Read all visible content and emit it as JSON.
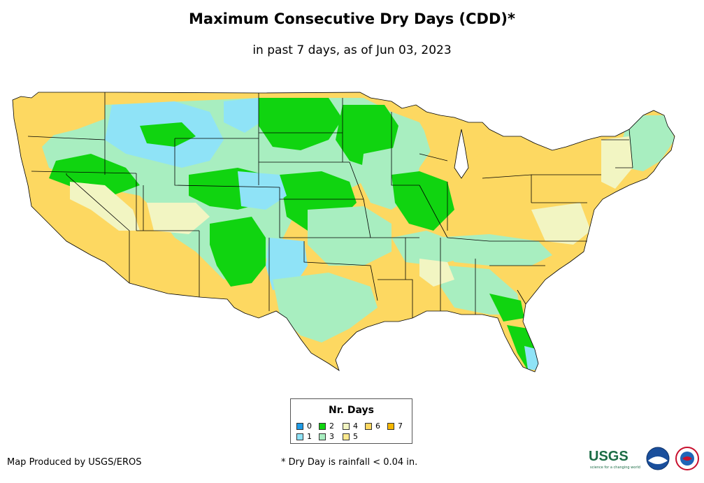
{
  "title": "Maximum Consecutive Dry Days (CDD)*",
  "subtitle": "in past 7 days, as of Jun 03, 2023",
  "legend": {
    "title": "Nr. Days",
    "items": [
      {
        "label": "0",
        "color": "#1e9be6"
      },
      {
        "label": "1",
        "color": "#8fe3f7"
      },
      {
        "label": "2",
        "color": "#10d410"
      },
      {
        "label": "3",
        "color": "#a8eec0"
      },
      {
        "label": "4",
        "color": "#f2f5c2"
      },
      {
        "label": "5",
        "color": "#fbe98f"
      },
      {
        "label": "6",
        "color": "#fdd861"
      },
      {
        "label": "7",
        "color": "#f5b700"
      }
    ]
  },
  "credit": "Map Produced by USGS/EROS",
  "footnote": "* Dry Day is rainfall < 0.04 in.",
  "logos": {
    "usgs": "USGS",
    "usgs_tagline": "science for a changing world",
    "noaa_icon": "noaa-logo-icon",
    "nws_icon": "nws-logo-icon"
  }
}
